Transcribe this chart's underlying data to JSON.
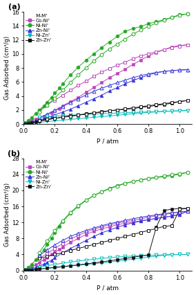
{
  "panel_a": {
    "ylabel": "Gas Adsorbed (cm³/g)",
    "xlabel": "P / atm",
    "ylim": [
      0,
      16
    ],
    "xlim": [
      0,
      1.08
    ],
    "yticks": [
      0,
      2,
      4,
      6,
      8,
      10,
      12,
      14,
      16
    ],
    "xticks": [
      0.0,
      0.2,
      0.4,
      0.6,
      0.8,
      1.0
    ],
    "series": [
      {
        "label": "Co-Ni'",
        "color": "#BB44BB",
        "ads_x": [
          0.01,
          0.03,
          0.05,
          0.08,
          0.1,
          0.13,
          0.15,
          0.18,
          0.2,
          0.23,
          0.25,
          0.3,
          0.35,
          0.4,
          0.45,
          0.5,
          0.55,
          0.6,
          0.65,
          0.7,
          0.75,
          0.8,
          0.85,
          0.9,
          0.95,
          1.0,
          1.05
        ],
        "ads_y": [
          0.15,
          0.3,
          0.5,
          0.7,
          0.9,
          1.1,
          1.3,
          1.6,
          1.9,
          2.2,
          2.6,
          3.2,
          3.8,
          4.5,
          5.2,
          5.9,
          6.6,
          7.2,
          7.8,
          8.5,
          9.1,
          9.7,
          10.2,
          10.6,
          11.0,
          11.2,
          11.3
        ],
        "des_x": [
          1.05,
          1.0,
          0.95,
          0.9,
          0.85,
          0.8,
          0.75,
          0.7,
          0.65,
          0.6,
          0.55,
          0.5,
          0.45,
          0.4,
          0.35,
          0.3,
          0.25,
          0.2,
          0.15,
          0.1
        ],
        "des_y": [
          11.3,
          11.1,
          10.9,
          10.6,
          10.3,
          10.0,
          9.7,
          9.3,
          8.8,
          8.4,
          7.9,
          7.4,
          6.8,
          6.1,
          5.5,
          4.8,
          4.1,
          3.4,
          2.7,
          2.0
        ],
        "marker_ads": "s",
        "marker_des": "s"
      },
      {
        "label": "Ni-Ni'",
        "color": "#22AA22",
        "ads_x": [
          0.01,
          0.03,
          0.05,
          0.08,
          0.1,
          0.13,
          0.15,
          0.18,
          0.2,
          0.23,
          0.25,
          0.3,
          0.35,
          0.4,
          0.45,
          0.5,
          0.55,
          0.6,
          0.65,
          0.7,
          0.75,
          0.8,
          0.85,
          0.9,
          0.95,
          1.0,
          1.05
        ],
        "ads_y": [
          0.2,
          0.5,
          0.9,
          1.5,
          2.0,
          2.6,
          3.1,
          3.8,
          4.4,
          5.1,
          5.7,
          7.0,
          8.1,
          9.1,
          10.0,
          10.9,
          11.7,
          12.5,
          13.2,
          13.6,
          13.9,
          14.3,
          14.6,
          14.9,
          15.2,
          15.6,
          15.7
        ],
        "des_x": [
          1.05,
          1.0,
          0.95,
          0.9,
          0.85,
          0.8,
          0.75,
          0.7,
          0.65,
          0.6,
          0.55,
          0.5,
          0.45,
          0.4,
          0.35,
          0.3,
          0.25,
          0.2,
          0.15,
          0.1
        ],
        "des_y": [
          15.7,
          15.5,
          15.2,
          14.8,
          14.4,
          13.9,
          13.4,
          12.8,
          12.1,
          11.4,
          10.7,
          9.9,
          9.0,
          8.0,
          7.0,
          5.9,
          4.8,
          3.7,
          2.7,
          1.7
        ],
        "marker_ads": "o",
        "marker_des": "o"
      },
      {
        "label": "Zn-Ni'",
        "color": "#3333DD",
        "ads_x": [
          0.01,
          0.03,
          0.05,
          0.08,
          0.1,
          0.13,
          0.15,
          0.18,
          0.2,
          0.25,
          0.3,
          0.35,
          0.4,
          0.45,
          0.5,
          0.55,
          0.6,
          0.65,
          0.7,
          0.75,
          0.8,
          0.85,
          0.9,
          0.95,
          1.0,
          1.05
        ],
        "ads_y": [
          0.1,
          0.2,
          0.3,
          0.45,
          0.6,
          0.75,
          0.9,
          1.1,
          1.3,
          1.7,
          2.1,
          2.6,
          3.1,
          3.6,
          4.1,
          4.7,
          5.2,
          5.7,
          6.2,
          6.6,
          7.0,
          7.3,
          7.5,
          7.6,
          7.7,
          7.75
        ],
        "des_x": [
          1.05,
          1.0,
          0.95,
          0.9,
          0.85,
          0.8,
          0.75,
          0.7,
          0.65,
          0.6,
          0.55,
          0.5,
          0.45,
          0.4,
          0.35,
          0.3,
          0.25,
          0.2,
          0.15,
          0.1
        ],
        "des_y": [
          7.75,
          7.7,
          7.6,
          7.5,
          7.35,
          7.15,
          6.9,
          6.6,
          6.25,
          5.9,
          5.5,
          5.1,
          4.65,
          4.15,
          3.6,
          3.05,
          2.5,
          1.95,
          1.4,
          0.85
        ],
        "marker_ads": "^",
        "marker_des": "^"
      },
      {
        "label": "Ni-Zn'",
        "color": "#00BBBB",
        "ads_x": [
          0.01,
          0.03,
          0.05,
          0.08,
          0.1,
          0.15,
          0.2,
          0.25,
          0.3,
          0.35,
          0.4,
          0.45,
          0.5,
          0.55,
          0.6,
          0.65,
          0.7,
          0.75,
          0.8,
          0.85,
          0.9,
          0.95,
          1.0,
          1.05
        ],
        "ads_y": [
          0.05,
          0.1,
          0.15,
          0.2,
          0.25,
          0.35,
          0.45,
          0.55,
          0.65,
          0.75,
          0.85,
          0.95,
          1.05,
          1.15,
          1.25,
          1.35,
          1.45,
          1.55,
          1.65,
          1.72,
          1.78,
          1.83,
          1.88,
          1.92
        ],
        "des_x": [
          1.05,
          1.0,
          0.95,
          0.9,
          0.85,
          0.8,
          0.75,
          0.7,
          0.65,
          0.6,
          0.55,
          0.5,
          0.45,
          0.4,
          0.35,
          0.3,
          0.25,
          0.2,
          0.15,
          0.1
        ],
        "des_y": [
          1.92,
          1.88,
          1.84,
          1.8,
          1.76,
          1.72,
          1.68,
          1.64,
          1.6,
          1.56,
          1.52,
          1.47,
          1.42,
          1.37,
          1.31,
          1.25,
          1.19,
          1.12,
          1.04,
          0.95
        ],
        "marker_ads": "v",
        "marker_des": "v"
      },
      {
        "label": "Zn-Zn'",
        "color": "#111111",
        "ads_x": [
          0.01,
          0.03,
          0.05,
          0.08,
          0.1,
          0.15,
          0.2,
          0.25,
          0.3,
          0.35,
          0.4,
          0.45,
          0.5,
          0.55,
          0.6,
          0.65,
          0.7,
          0.75,
          0.8,
          0.85,
          0.9,
          0.95,
          1.0,
          1.05
        ],
        "ads_y": [
          0.05,
          0.12,
          0.2,
          0.3,
          0.4,
          0.6,
          0.8,
          1.0,
          1.15,
          1.3,
          1.45,
          1.6,
          1.75,
          1.9,
          2.0,
          2.1,
          2.2,
          2.35,
          2.5,
          2.65,
          2.8,
          2.95,
          3.2,
          3.35
        ],
        "des_x": [
          1.05,
          1.0,
          0.95,
          0.9,
          0.85,
          0.8,
          0.75,
          0.7,
          0.65,
          0.6,
          0.55,
          0.5,
          0.45,
          0.4,
          0.35,
          0.3,
          0.25,
          0.2,
          0.15,
          0.1
        ],
        "des_y": [
          3.35,
          3.2,
          3.05,
          2.9,
          2.75,
          2.6,
          2.45,
          2.3,
          2.15,
          2.0,
          1.85,
          1.7,
          1.55,
          1.4,
          1.25,
          1.1,
          0.95,
          0.8,
          0.65,
          0.5
        ],
        "marker_ads": "s",
        "marker_des": "s"
      }
    ]
  },
  "panel_b": {
    "ylabel": "Gas Adsorbed (cm³/g)",
    "xlabel": "P / atm",
    "ylim": [
      0,
      28
    ],
    "xlim": [
      0,
      1.08
    ],
    "yticks": [
      0,
      4,
      8,
      12,
      16,
      20,
      24,
      28
    ],
    "xticks": [
      0.0,
      0.2,
      0.4,
      0.6,
      0.8,
      1.0
    ],
    "series": [
      {
        "label": "Co-Ni'",
        "color": "#BB44BB",
        "ads_x": [
          0.01,
          0.03,
          0.05,
          0.08,
          0.1,
          0.13,
          0.15,
          0.18,
          0.2,
          0.23,
          0.25,
          0.3,
          0.35,
          0.4,
          0.45,
          0.5,
          0.55,
          0.6,
          0.65,
          0.7,
          0.75,
          0.8,
          0.85,
          0.9,
          0.95,
          1.0,
          1.05
        ],
        "ads_y": [
          0.2,
          0.5,
          0.9,
          1.5,
          2.0,
          2.7,
          3.3,
          4.0,
          4.6,
          5.3,
          5.9,
          7.0,
          8.0,
          9.0,
          9.8,
          10.4,
          10.9,
          11.4,
          11.8,
          12.1,
          12.4,
          12.7,
          13.0,
          13.3,
          13.6,
          14.0,
          14.8
        ],
        "des_x": [
          1.05,
          1.0,
          0.95,
          0.9,
          0.85,
          0.8,
          0.75,
          0.7,
          0.65,
          0.6,
          0.55,
          0.5,
          0.45,
          0.4,
          0.35,
          0.3,
          0.25,
          0.2,
          0.15,
          0.1
        ],
        "des_y": [
          14.8,
          14.6,
          14.3,
          14.0,
          13.7,
          13.3,
          12.9,
          12.5,
          12.2,
          11.8,
          11.4,
          10.9,
          10.3,
          9.6,
          8.8,
          7.8,
          6.7,
          5.5,
          4.2,
          3.0
        ],
        "marker_ads": "s",
        "marker_des": "s"
      },
      {
        "label": "Ni-Ni'",
        "color": "#22AA22",
        "ads_x": [
          0.01,
          0.03,
          0.05,
          0.08,
          0.1,
          0.13,
          0.15,
          0.18,
          0.2,
          0.23,
          0.25,
          0.3,
          0.35,
          0.4,
          0.45,
          0.5,
          0.55,
          0.6,
          0.65,
          0.7,
          0.75,
          0.8,
          0.85,
          0.9,
          0.95,
          1.0,
          1.05
        ],
        "ads_y": [
          0.3,
          0.8,
          1.5,
          2.7,
          3.8,
          5.2,
          6.5,
          8.0,
          9.5,
          11.0,
          12.2,
          14.3,
          16.0,
          17.5,
          18.7,
          19.7,
          20.5,
          21.2,
          21.8,
          22.2,
          22.6,
          22.9,
          23.2,
          23.4,
          23.7,
          24.0,
          24.5
        ],
        "des_x": [
          1.05,
          1.0,
          0.95,
          0.9,
          0.85,
          0.8,
          0.75,
          0.7,
          0.65,
          0.6,
          0.55,
          0.5,
          0.45,
          0.4,
          0.35,
          0.3,
          0.25,
          0.2,
          0.15,
          0.1
        ],
        "des_y": [
          24.5,
          24.2,
          23.9,
          23.6,
          23.3,
          23.0,
          22.6,
          22.2,
          21.7,
          21.1,
          20.4,
          19.6,
          18.7,
          17.6,
          16.2,
          14.5,
          12.4,
          10.0,
          7.3,
          4.5
        ],
        "marker_ads": "o",
        "marker_des": "o"
      },
      {
        "label": "Zn-Ni'",
        "color": "#3333DD",
        "ads_x": [
          0.01,
          0.03,
          0.05,
          0.08,
          0.1,
          0.13,
          0.15,
          0.18,
          0.2,
          0.25,
          0.3,
          0.35,
          0.4,
          0.45,
          0.5,
          0.55,
          0.6,
          0.65,
          0.7,
          0.75,
          0.8,
          0.85,
          0.9,
          0.95,
          1.0,
          1.05
        ],
        "ads_y": [
          0.1,
          0.25,
          0.45,
          0.8,
          1.1,
          1.6,
          2.0,
          2.6,
          3.2,
          4.4,
          5.5,
          6.5,
          7.5,
          8.5,
          9.4,
          10.1,
          10.8,
          11.4,
          11.9,
          12.3,
          12.7,
          13.0,
          13.3,
          13.6,
          14.0,
          14.8
        ],
        "des_x": [
          1.05,
          1.0,
          0.95,
          0.9,
          0.85,
          0.8,
          0.75,
          0.7,
          0.65,
          0.6,
          0.55,
          0.5,
          0.45,
          0.4,
          0.35,
          0.3,
          0.25,
          0.2,
          0.15,
          0.1
        ],
        "des_y": [
          14.8,
          14.6,
          14.4,
          14.2,
          13.9,
          13.6,
          13.3,
          12.9,
          12.5,
          12.1,
          11.7,
          11.2,
          10.6,
          10.0,
          9.3,
          8.5,
          7.5,
          6.4,
          5.1,
          3.7
        ],
        "marker_ads": "^",
        "marker_des": "^"
      },
      {
        "label": "Ni-Zn'",
        "color": "#00BBBB",
        "ads_x": [
          0.01,
          0.03,
          0.05,
          0.08,
          0.1,
          0.15,
          0.2,
          0.25,
          0.3,
          0.35,
          0.4,
          0.45,
          0.5,
          0.55,
          0.6,
          0.65,
          0.7,
          0.75,
          0.8,
          0.85,
          0.9,
          0.95,
          1.0,
          1.05
        ],
        "ads_y": [
          0.05,
          0.1,
          0.18,
          0.28,
          0.38,
          0.55,
          0.72,
          0.9,
          1.1,
          1.3,
          1.5,
          1.7,
          1.9,
          2.1,
          2.35,
          2.6,
          2.85,
          3.1,
          3.35,
          3.6,
          3.8,
          3.95,
          4.0,
          4.0
        ],
        "des_x": [
          1.05,
          1.0,
          0.95,
          0.9,
          0.85,
          0.8,
          0.75,
          0.7,
          0.65,
          0.6,
          0.55,
          0.5,
          0.45,
          0.4,
          0.35,
          0.3,
          0.25,
          0.2,
          0.15,
          0.1
        ],
        "des_y": [
          4.0,
          4.0,
          3.95,
          3.9,
          3.85,
          3.8,
          3.72,
          3.62,
          3.5,
          3.36,
          3.2,
          3.02,
          2.82,
          2.6,
          2.36,
          2.1,
          1.82,
          1.52,
          1.2,
          0.87
        ],
        "marker_ads": "v",
        "marker_des": "v"
      },
      {
        "label": "Zn-Zn'",
        "color": "#111111",
        "ads_x": [
          0.01,
          0.03,
          0.05,
          0.08,
          0.1,
          0.15,
          0.2,
          0.25,
          0.3,
          0.35,
          0.4,
          0.45,
          0.5,
          0.55,
          0.6,
          0.65,
          0.7,
          0.75,
          0.8,
          0.85,
          0.9,
          0.95,
          1.0,
          1.05
        ],
        "ads_y": [
          0.05,
          0.1,
          0.18,
          0.28,
          0.38,
          0.58,
          0.78,
          1.0,
          1.2,
          1.42,
          1.65,
          1.9,
          2.15,
          2.42,
          2.7,
          3.0,
          3.3,
          3.6,
          3.9,
          10.8,
          15.0,
          15.3,
          15.5,
          15.5
        ],
        "des_x": [
          1.05,
          1.0,
          0.95,
          0.9,
          0.85,
          0.8,
          0.75,
          0.7,
          0.65,
          0.6,
          0.55,
          0.5,
          0.45,
          0.4,
          0.35,
          0.3,
          0.25,
          0.2,
          0.15,
          0.1
        ],
        "des_y": [
          15.5,
          15.3,
          11.2,
          11.0,
          10.5,
          10.0,
          9.5,
          9.0,
          8.5,
          8.0,
          7.5,
          7.0,
          6.5,
          6.0,
          5.5,
          5.0,
          4.5,
          4.0,
          3.5,
          3.0
        ],
        "marker_ads": "s",
        "marker_des": "s"
      }
    ]
  },
  "legend_title": "M-M'",
  "marker_size": 3.5,
  "line_width": 0.7,
  "font_size_tick": 6,
  "font_size_label": 6.5,
  "font_size_legend": 5.0
}
